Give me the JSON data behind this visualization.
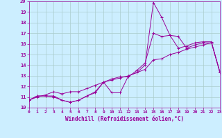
{
  "xlabel": "Windchill (Refroidissement éolien,°C)",
  "bg_color": "#cceeff",
  "grid_color": "#aacccc",
  "line_color": "#990099",
  "xlim": [
    0,
    23
  ],
  "ylim": [
    10,
    20
  ],
  "xticks": [
    0,
    1,
    2,
    3,
    4,
    5,
    6,
    7,
    8,
    9,
    10,
    11,
    12,
    13,
    14,
    15,
    16,
    17,
    18,
    19,
    20,
    21,
    22,
    23
  ],
  "yticks": [
    10,
    11,
    12,
    13,
    14,
    15,
    16,
    17,
    18,
    19,
    20
  ],
  "line1_x": [
    0,
    1,
    2,
    3,
    4,
    5,
    6,
    7,
    8,
    9,
    10,
    11,
    12,
    13,
    14,
    15,
    16,
    17,
    18,
    19,
    20,
    21,
    22,
    23
  ],
  "line1_y": [
    10.7,
    11.1,
    11.1,
    11.1,
    10.7,
    10.5,
    10.7,
    11.1,
    11.4,
    12.4,
    11.4,
    11.4,
    13.0,
    13.3,
    14.0,
    19.9,
    18.5,
    16.8,
    16.7,
    15.6,
    15.9,
    16.1,
    16.1,
    13.4
  ],
  "line2_x": [
    0,
    1,
    2,
    3,
    4,
    5,
    6,
    7,
    8,
    9,
    10,
    11,
    12,
    13,
    14,
    15,
    16,
    17,
    18,
    19,
    20,
    21,
    22,
    23
  ],
  "line2_y": [
    10.7,
    11.1,
    11.1,
    11.0,
    10.7,
    10.5,
    10.7,
    11.1,
    11.5,
    12.4,
    12.7,
    12.9,
    12.9,
    13.5,
    14.2,
    17.0,
    16.7,
    16.8,
    15.6,
    15.8,
    16.1,
    16.2,
    16.2,
    13.3
  ],
  "line3_x": [
    0,
    1,
    2,
    3,
    4,
    5,
    6,
    7,
    8,
    9,
    10,
    11,
    12,
    13,
    14,
    15,
    16,
    17,
    18,
    19,
    20,
    21,
    22,
    23
  ],
  "line3_y": [
    10.7,
    11.0,
    11.2,
    11.5,
    11.3,
    11.5,
    11.5,
    11.8,
    12.1,
    12.4,
    12.6,
    12.8,
    13.0,
    13.3,
    13.6,
    14.5,
    14.6,
    15.0,
    15.2,
    15.5,
    15.7,
    15.9,
    16.1,
    13.4
  ]
}
